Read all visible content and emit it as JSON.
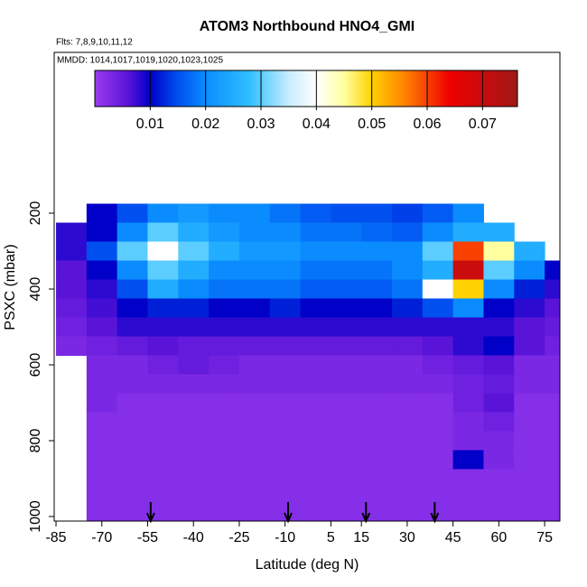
{
  "chart_data": {
    "type": "heatmap",
    "title": "ATOM3 Northbound HNO4_GMI",
    "subtitle": "Flts: 7,8,9,10,11,12",
    "annotation": "MMDD: 1014,1017,1019,1020,1023,1025",
    "x_label": "Latitude (deg N)",
    "y_label": "PSXC (mbar)",
    "x": [
      -80,
      -70,
      -60,
      -50,
      -40,
      -30,
      -20,
      -10,
      0,
      10,
      20,
      30,
      40,
      50,
      60,
      70,
      80
    ],
    "y": [
      200,
      250,
      300,
      350,
      400,
      450,
      500,
      550,
      600,
      650,
      700,
      750,
      800,
      850,
      900,
      950,
      1000
    ],
    "z": [
      [
        null,
        0.01,
        0.015,
        0.02,
        0.022,
        0.02,
        0.02,
        0.018,
        0.016,
        0.015,
        0.015,
        0.014,
        0.016,
        0.02,
        null,
        null,
        null
      ],
      [
        0.008,
        0.01,
        0.02,
        0.03,
        0.025,
        0.022,
        0.02,
        0.02,
        0.018,
        0.018,
        0.017,
        0.016,
        0.02,
        0.025,
        0.025,
        null,
        null
      ],
      [
        0.008,
        0.015,
        0.03,
        0.04,
        0.03,
        0.025,
        0.022,
        0.022,
        0.02,
        0.02,
        0.02,
        0.02,
        0.03,
        0.06,
        0.045,
        0.025,
        null
      ],
      [
        0.006,
        0.01,
        0.02,
        0.03,
        0.025,
        0.02,
        0.02,
        0.02,
        0.018,
        0.018,
        0.018,
        0.02,
        0.025,
        0.07,
        0.03,
        0.02,
        0.01
      ],
      [
        0.006,
        0.008,
        0.015,
        0.025,
        0.02,
        0.018,
        0.018,
        0.018,
        0.016,
        0.016,
        0.016,
        0.018,
        0.04,
        0.05,
        0.02,
        0.012,
        0.008
      ],
      [
        0.005,
        0.007,
        0.01,
        0.012,
        0.012,
        0.01,
        0.01,
        0.012,
        0.01,
        0.01,
        0.01,
        0.012,
        0.015,
        0.02,
        0.01,
        0.008,
        0.006
      ],
      [
        0.004,
        0.006,
        0.008,
        0.008,
        0.008,
        0.008,
        0.008,
        0.008,
        0.008,
        0.008,
        0.008,
        0.008,
        0.008,
        0.008,
        0.008,
        0.006,
        0.005
      ],
      [
        0.003,
        0.004,
        0.005,
        0.006,
        0.005,
        0.005,
        0.005,
        0.005,
        0.005,
        0.005,
        0.005,
        0.005,
        0.006,
        0.008,
        0.01,
        0.006,
        0.004
      ],
      [
        null,
        0.003,
        0.003,
        0.004,
        0.005,
        0.004,
        0.003,
        0.003,
        0.003,
        0.003,
        0.003,
        0.003,
        0.004,
        0.005,
        0.006,
        0.003,
        0.003
      ],
      [
        null,
        0.003,
        0.003,
        0.003,
        0.003,
        0.003,
        0.003,
        0.003,
        0.003,
        0.003,
        0.003,
        0.003,
        0.003,
        0.004,
        0.005,
        0.003,
        0.003
      ],
      [
        null,
        0.003,
        0.002,
        0.002,
        0.002,
        0.002,
        0.002,
        0.002,
        0.002,
        0.002,
        0.002,
        0.002,
        0.002,
        0.004,
        0.006,
        0.002,
        0.002
      ],
      [
        null,
        0.002,
        0.002,
        0.002,
        0.002,
        0.002,
        0.002,
        0.002,
        0.002,
        0.002,
        0.002,
        0.002,
        0.002,
        0.003,
        0.004,
        0.002,
        0.002
      ],
      [
        null,
        0.002,
        0.002,
        0.002,
        0.002,
        0.002,
        0.002,
        0.002,
        0.002,
        0.002,
        0.002,
        0.002,
        0.002,
        0.003,
        0.003,
        0.002,
        0.002
      ],
      [
        null,
        0.002,
        0.002,
        0.002,
        0.002,
        0.002,
        0.002,
        0.002,
        0.002,
        0.002,
        0.002,
        0.002,
        0.002,
        0.01,
        0.003,
        0.002,
        0.002
      ],
      [
        null,
        0.002,
        0.002,
        0.002,
        0.002,
        0.002,
        0.002,
        0.002,
        0.002,
        0.002,
        0.002,
        0.002,
        0.002,
        0.002,
        0.002,
        0.002,
        0.002
      ],
      [
        null,
        0.002,
        0.002,
        0.002,
        0.002,
        0.002,
        0.002,
        0.002,
        0.002,
        0.002,
        0.002,
        0.002,
        0.002,
        0.002,
        0.002,
        0.002,
        0.002
      ],
      [
        null,
        0.002,
        0.002,
        0.002,
        0.002,
        0.002,
        0.002,
        0.002,
        0.002,
        0.002,
        0.002,
        0.002,
        0.002,
        0.002,
        0.002,
        0.002,
        0.002
      ]
    ],
    "xlim": [
      -85.6,
      80
    ],
    "xticks": [
      -85,
      -70,
      -55,
      -40,
      -25,
      -10,
      5,
      15,
      30,
      45,
      60,
      75
    ],
    "ylim": [
      1012,
      -224
    ],
    "yticks": [
      200,
      400,
      600,
      800,
      1000
    ],
    "flight_markers": [
      -54,
      -9,
      16.5,
      39
    ],
    "colorbar": {
      "lim": [
        0,
        0.0763
      ],
      "ticks": [
        0.01,
        0.02,
        0.03,
        0.04,
        0.05,
        0.06,
        0.07
      ],
      "colorscale": [
        [
          0,
          "#9b3cf0"
        ],
        [
          0.006,
          "#5a14d8"
        ],
        [
          0.01,
          "#0000c8"
        ],
        [
          0.015,
          "#0050f0"
        ],
        [
          0.02,
          "#0a8cff"
        ],
        [
          0.028,
          "#30c0ff"
        ],
        [
          0.035,
          "#c8ecff"
        ],
        [
          0.04,
          "#ffffff"
        ],
        [
          0.045,
          "#ffffa0"
        ],
        [
          0.05,
          "#ffd200"
        ],
        [
          0.056,
          "#ff8200"
        ],
        [
          0.064,
          "#f00000"
        ],
        [
          0.0763,
          "#a01818"
        ]
      ]
    }
  }
}
